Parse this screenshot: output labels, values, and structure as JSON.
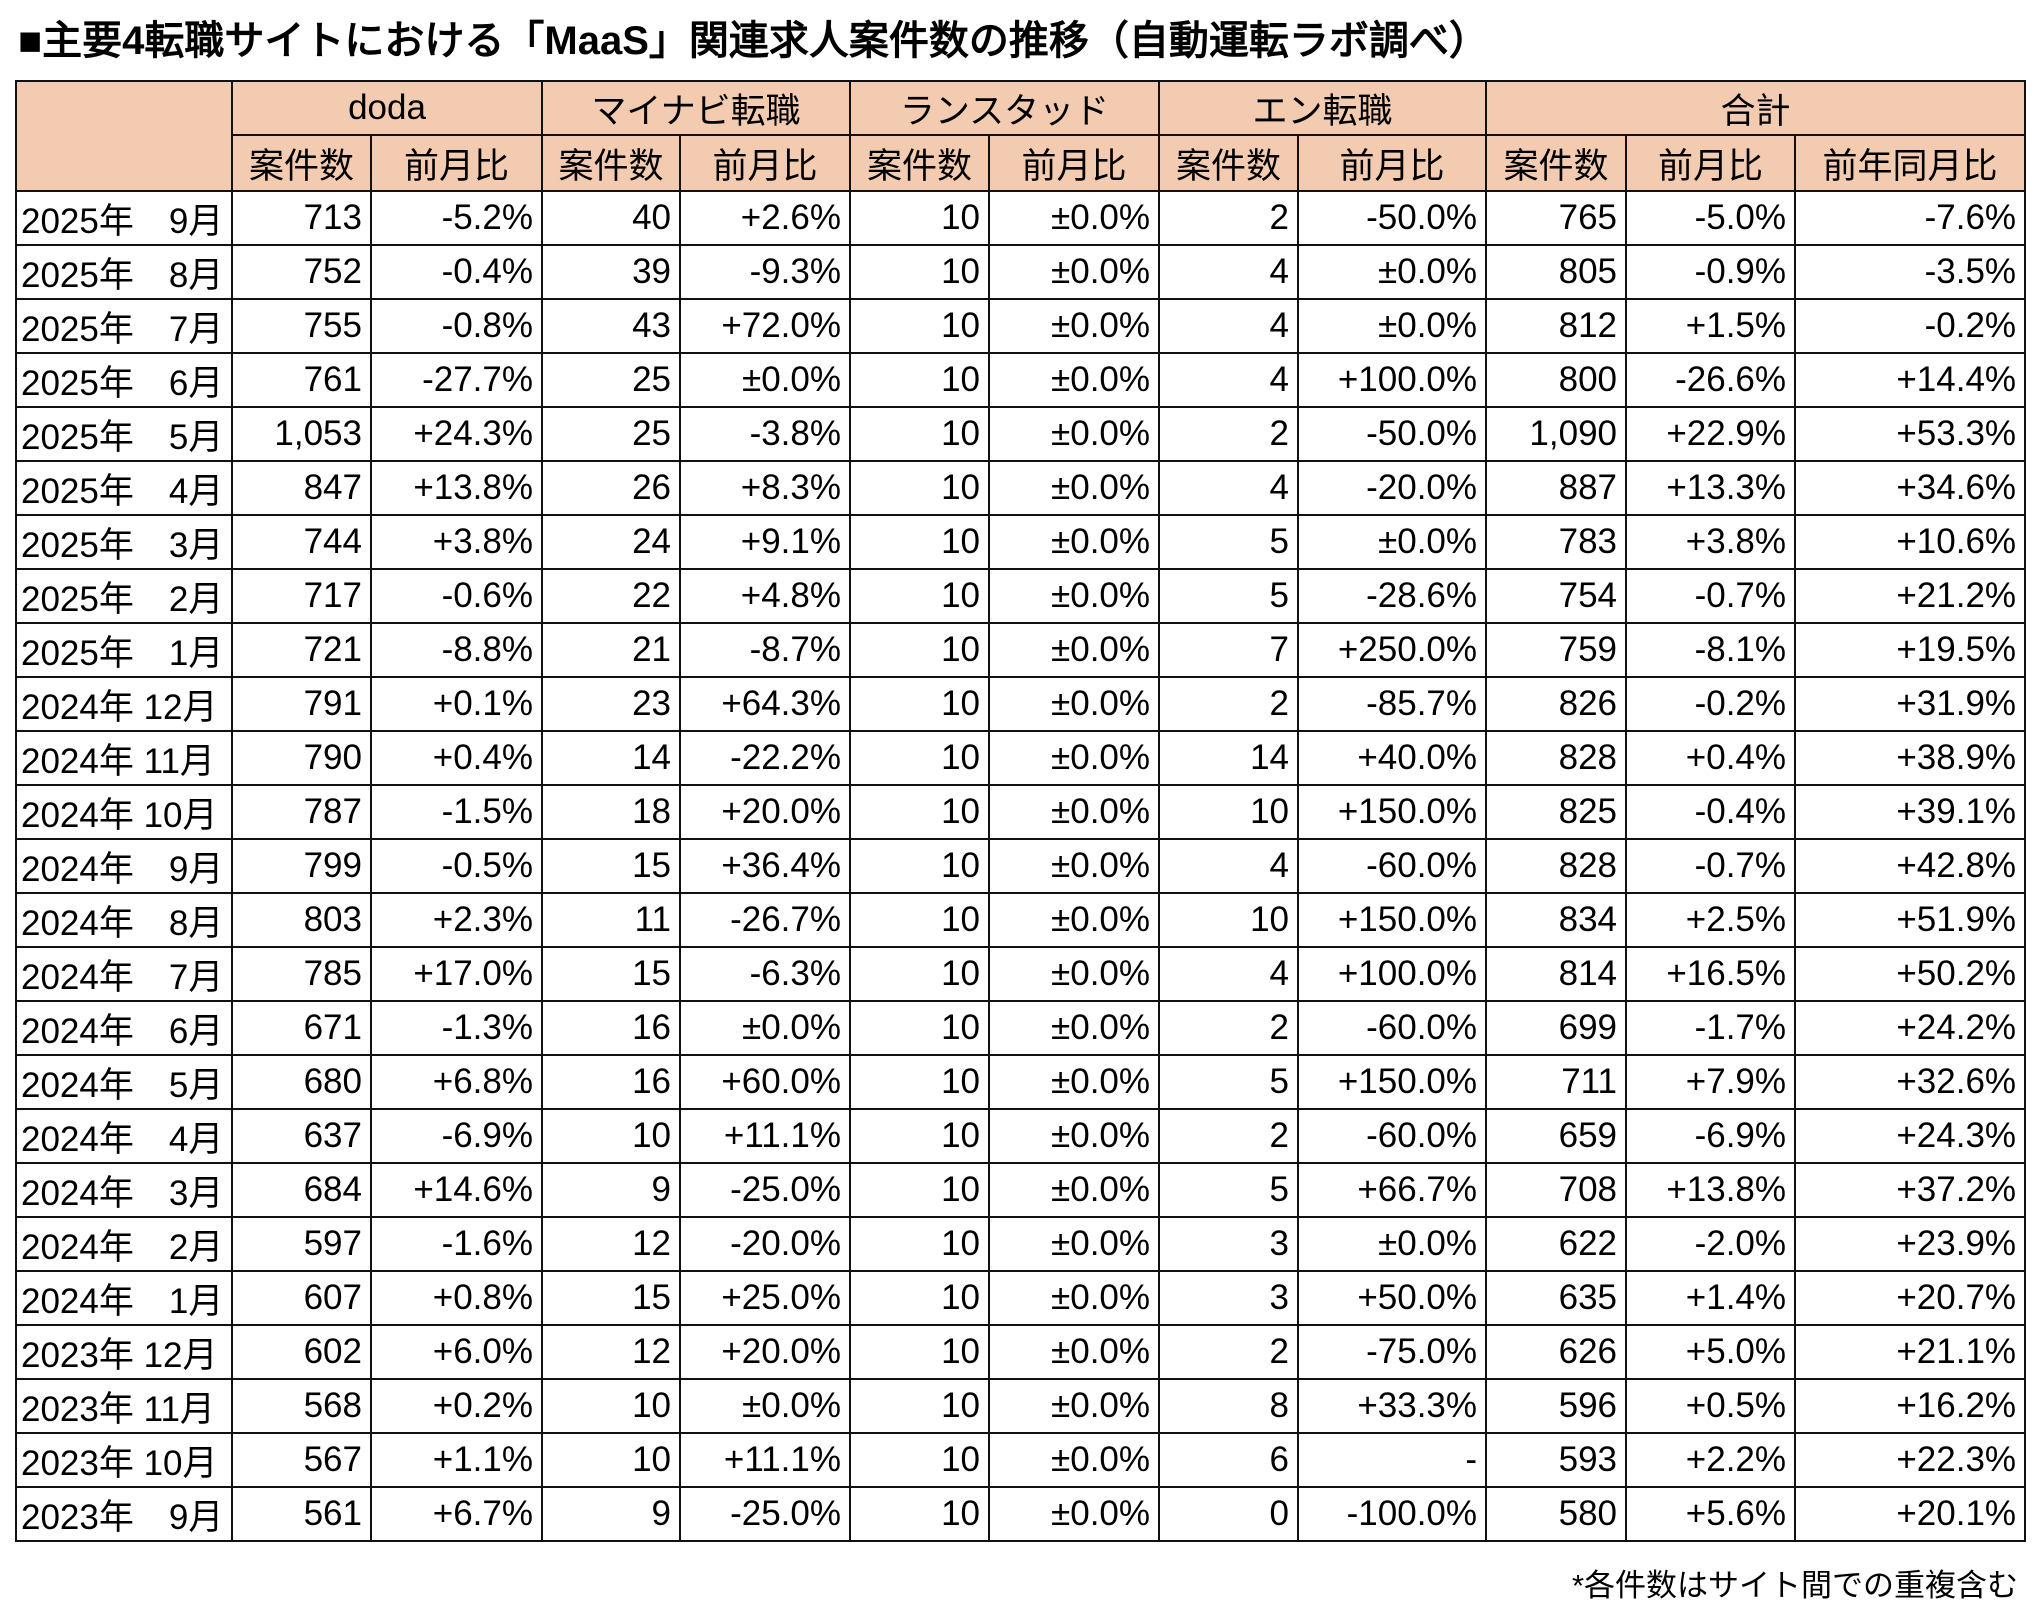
{
  "title": "■主要4転職サイトにおける「MaaS」関連求人案件数の推移（自動運転ラボ調べ）",
  "header": {
    "groups": [
      "doda",
      "マイナビ転職",
      "ランスタッド",
      "エン転職",
      "合計"
    ],
    "sub": [
      "案件数",
      "前月比",
      "案件数",
      "前月比",
      "案件数",
      "前月比",
      "案件数",
      "前月比",
      "案件数",
      "前月比",
      "前年同月比"
    ]
  },
  "rows": [
    [
      "2025年　9月",
      "713",
      "-5.2%",
      "40",
      "+2.6%",
      "10",
      "±0.0%",
      "2",
      "-50.0%",
      "765",
      "-5.0%",
      "-7.6%"
    ],
    [
      "2025年　8月",
      "752",
      "-0.4%",
      "39",
      "-9.3%",
      "10",
      "±0.0%",
      "4",
      "±0.0%",
      "805",
      "-0.9%",
      "-3.5%"
    ],
    [
      "2025年　7月",
      "755",
      "-0.8%",
      "43",
      "+72.0%",
      "10",
      "±0.0%",
      "4",
      "±0.0%",
      "812",
      "+1.5%",
      "-0.2%"
    ],
    [
      "2025年　6月",
      "761",
      "-27.7%",
      "25",
      "±0.0%",
      "10",
      "±0.0%",
      "4",
      "+100.0%",
      "800",
      "-26.6%",
      "+14.4%"
    ],
    [
      "2025年　5月",
      "1,053",
      "+24.3%",
      "25",
      "-3.8%",
      "10",
      "±0.0%",
      "2",
      "-50.0%",
      "1,090",
      "+22.9%",
      "+53.3%"
    ],
    [
      "2025年　4月",
      "847",
      "+13.8%",
      "26",
      "+8.3%",
      "10",
      "±0.0%",
      "4",
      "-20.0%",
      "887",
      "+13.3%",
      "+34.6%"
    ],
    [
      "2025年　3月",
      "744",
      "+3.8%",
      "24",
      "+9.1%",
      "10",
      "±0.0%",
      "5",
      "±0.0%",
      "783",
      "+3.8%",
      "+10.6%"
    ],
    [
      "2025年　2月",
      "717",
      "-0.6%",
      "22",
      "+4.8%",
      "10",
      "±0.0%",
      "5",
      "-28.6%",
      "754",
      "-0.7%",
      "+21.2%"
    ],
    [
      "2025年　1月",
      "721",
      "-8.8%",
      "21",
      "-8.7%",
      "10",
      "±0.0%",
      "7",
      "+250.0%",
      "759",
      "-8.1%",
      "+19.5%"
    ],
    [
      "2024年 12月",
      "791",
      "+0.1%",
      "23",
      "+64.3%",
      "10",
      "±0.0%",
      "2",
      "-85.7%",
      "826",
      "-0.2%",
      "+31.9%"
    ],
    [
      "2024年 11月",
      "790",
      "+0.4%",
      "14",
      "-22.2%",
      "10",
      "±0.0%",
      "14",
      "+40.0%",
      "828",
      "+0.4%",
      "+38.9%"
    ],
    [
      "2024年 10月",
      "787",
      "-1.5%",
      "18",
      "+20.0%",
      "10",
      "±0.0%",
      "10",
      "+150.0%",
      "825",
      "-0.4%",
      "+39.1%"
    ],
    [
      "2024年　9月",
      "799",
      "-0.5%",
      "15",
      "+36.4%",
      "10",
      "±0.0%",
      "4",
      "-60.0%",
      "828",
      "-0.7%",
      "+42.8%"
    ],
    [
      "2024年　8月",
      "803",
      "+2.3%",
      "11",
      "-26.7%",
      "10",
      "±0.0%",
      "10",
      "+150.0%",
      "834",
      "+2.5%",
      "+51.9%"
    ],
    [
      "2024年　7月",
      "785",
      "+17.0%",
      "15",
      "-6.3%",
      "10",
      "±0.0%",
      "4",
      "+100.0%",
      "814",
      "+16.5%",
      "+50.2%"
    ],
    [
      "2024年　6月",
      "671",
      "-1.3%",
      "16",
      "±0.0%",
      "10",
      "±0.0%",
      "2",
      "-60.0%",
      "699",
      "-1.7%",
      "+24.2%"
    ],
    [
      "2024年　5月",
      "680",
      "+6.8%",
      "16",
      "+60.0%",
      "10",
      "±0.0%",
      "5",
      "+150.0%",
      "711",
      "+7.9%",
      "+32.6%"
    ],
    [
      "2024年　4月",
      "637",
      "-6.9%",
      "10",
      "+11.1%",
      "10",
      "±0.0%",
      "2",
      "-60.0%",
      "659",
      "-6.9%",
      "+24.3%"
    ],
    [
      "2024年　3月",
      "684",
      "+14.6%",
      "9",
      "-25.0%",
      "10",
      "±0.0%",
      "5",
      "+66.7%",
      "708",
      "+13.8%",
      "+37.2%"
    ],
    [
      "2024年　2月",
      "597",
      "-1.6%",
      "12",
      "-20.0%",
      "10",
      "±0.0%",
      "3",
      "±0.0%",
      "622",
      "-2.0%",
      "+23.9%"
    ],
    [
      "2024年　1月",
      "607",
      "+0.8%",
      "15",
      "+25.0%",
      "10",
      "±0.0%",
      "3",
      "+50.0%",
      "635",
      "+1.4%",
      "+20.7%"
    ],
    [
      "2023年 12月",
      "602",
      "+6.0%",
      "12",
      "+20.0%",
      "10",
      "±0.0%",
      "2",
      "-75.0%",
      "626",
      "+5.0%",
      "+21.1%"
    ],
    [
      "2023年 11月",
      "568",
      "+0.2%",
      "10",
      "±0.0%",
      "10",
      "±0.0%",
      "8",
      "+33.3%",
      "596",
      "+0.5%",
      "+16.2%"
    ],
    [
      "2023年 10月",
      "567",
      "+1.1%",
      "10",
      "+11.1%",
      "10",
      "±0.0%",
      "6",
      "-",
      "593",
      "+2.2%",
      "+22.3%"
    ],
    [
      "2023年　9月",
      "561",
      "+6.7%",
      "9",
      "-25.0%",
      "10",
      "±0.0%",
      "0",
      "-100.0%",
      "580",
      "+5.6%",
      "+20.1%"
    ]
  ],
  "footnote": "*各件数はサイト間での重複含む"
}
